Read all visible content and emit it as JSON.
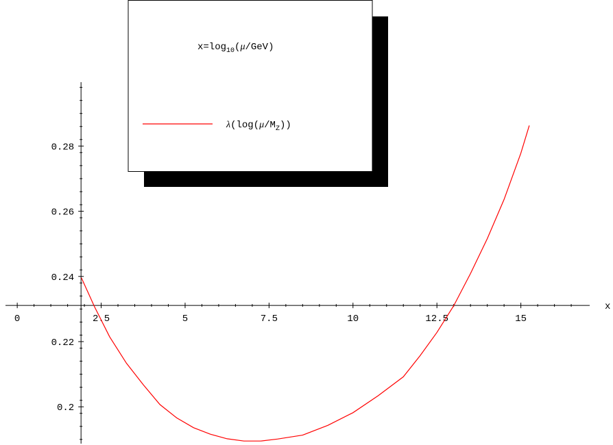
{
  "chart_data": {
    "type": "line",
    "xlabel": "x",
    "ylabel": "",
    "xlim": [
      -0.35,
      17.05
    ],
    "ylim": [
      0.1887,
      0.2996
    ],
    "x_axis_crossing_y": 0.2311,
    "y_axis_crossing_x": 1.9,
    "x_tick_values": [
      0,
      2.5,
      5,
      7.5,
      10,
      12.5,
      15
    ],
    "x_tick_labels": [
      "0",
      "2.5",
      "5",
      "7.5",
      "10",
      "12.5",
      "15"
    ],
    "y_tick_values": [
      0.2,
      0.22,
      0.24,
      0.26,
      0.28
    ],
    "y_tick_labels": [
      "0.2",
      "0.22",
      "0.24",
      "0.26",
      "0.28"
    ],
    "grid": false,
    "legend": {
      "placement": "top-center",
      "header": {
        "prefix": "x=log",
        "sub": "10",
        "open": "(",
        "mu": "μ",
        "suffix": "/GeV)"
      },
      "entry": {
        "lambda": "λ",
        "pre": "(log(",
        "mu": "μ",
        "mid": "/M",
        "sub": "Z",
        "post": "))"
      }
    },
    "series": [
      {
        "color": "#ff0000",
        "x": [
          1.91,
          2.3,
          2.75,
          3.25,
          3.75,
          4.25,
          4.75,
          5.25,
          5.75,
          6.25,
          6.75,
          7.25,
          7.75,
          8.5,
          9.25,
          10.0,
          10.75,
          11.5,
          12.0,
          12.5,
          13.0,
          13.5,
          14.0,
          14.5,
          15.0,
          15.25
        ],
        "y": [
          0.2396,
          0.2307,
          0.2215,
          0.2134,
          0.2068,
          0.2007,
          0.1966,
          0.1936,
          0.1916,
          0.1902,
          0.1895,
          0.1895,
          0.1901,
          0.1913,
          0.1943,
          0.1982,
          0.2034,
          0.2092,
          0.2157,
          0.2228,
          0.231,
          0.2409,
          0.2516,
          0.2636,
          0.2778,
          0.2863
        ]
      }
    ]
  }
}
